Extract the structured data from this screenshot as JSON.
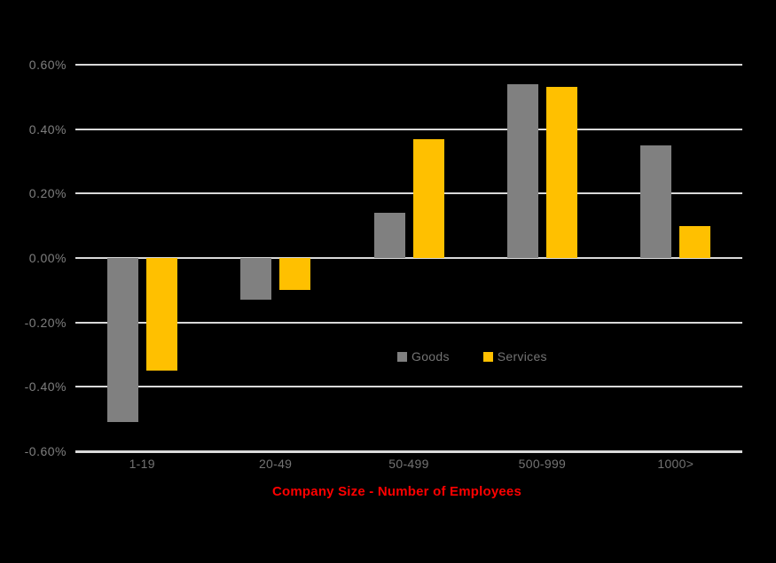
{
  "chart_data": {
    "type": "bar",
    "title": "",
    "xlabel": "Company Size - Number of Employees",
    "ylabel": "",
    "categories": [
      "1-19",
      "20-49",
      "50-499",
      "500-999",
      "1000>"
    ],
    "series": [
      {
        "name": "Goods",
        "color": "#808080",
        "values": [
          -0.51,
          -0.13,
          0.14,
          0.54,
          0.35
        ]
      },
      {
        "name": "Services",
        "color": "#ffc000",
        "values": [
          -0.35,
          -0.1,
          0.37,
          0.53,
          0.1
        ]
      }
    ],
    "y_ticks": [
      "0.60%",
      "0.40%",
      "0.20%",
      "0.00%",
      "-0.20%",
      "-0.40%",
      "-0.60%"
    ],
    "y_tick_values": [
      0.6,
      0.4,
      0.2,
      0.0,
      -0.2,
      -0.4,
      -0.6
    ],
    "ylim": [
      -0.6,
      0.6
    ],
    "value_unit": "%",
    "grid": true,
    "legend_position": "inside-lower-middle"
  },
  "colors": {
    "background": "#000000",
    "gridline": "#d9d9d9",
    "axis_line": "#d9d9d9",
    "y_tick_label": "#7f7f7f",
    "x_tick_label": "#737373",
    "legend_text": "#737373",
    "xlabel_text": "#ff0000",
    "goods_bar": "#808080",
    "services_bar": "#ffc000"
  }
}
